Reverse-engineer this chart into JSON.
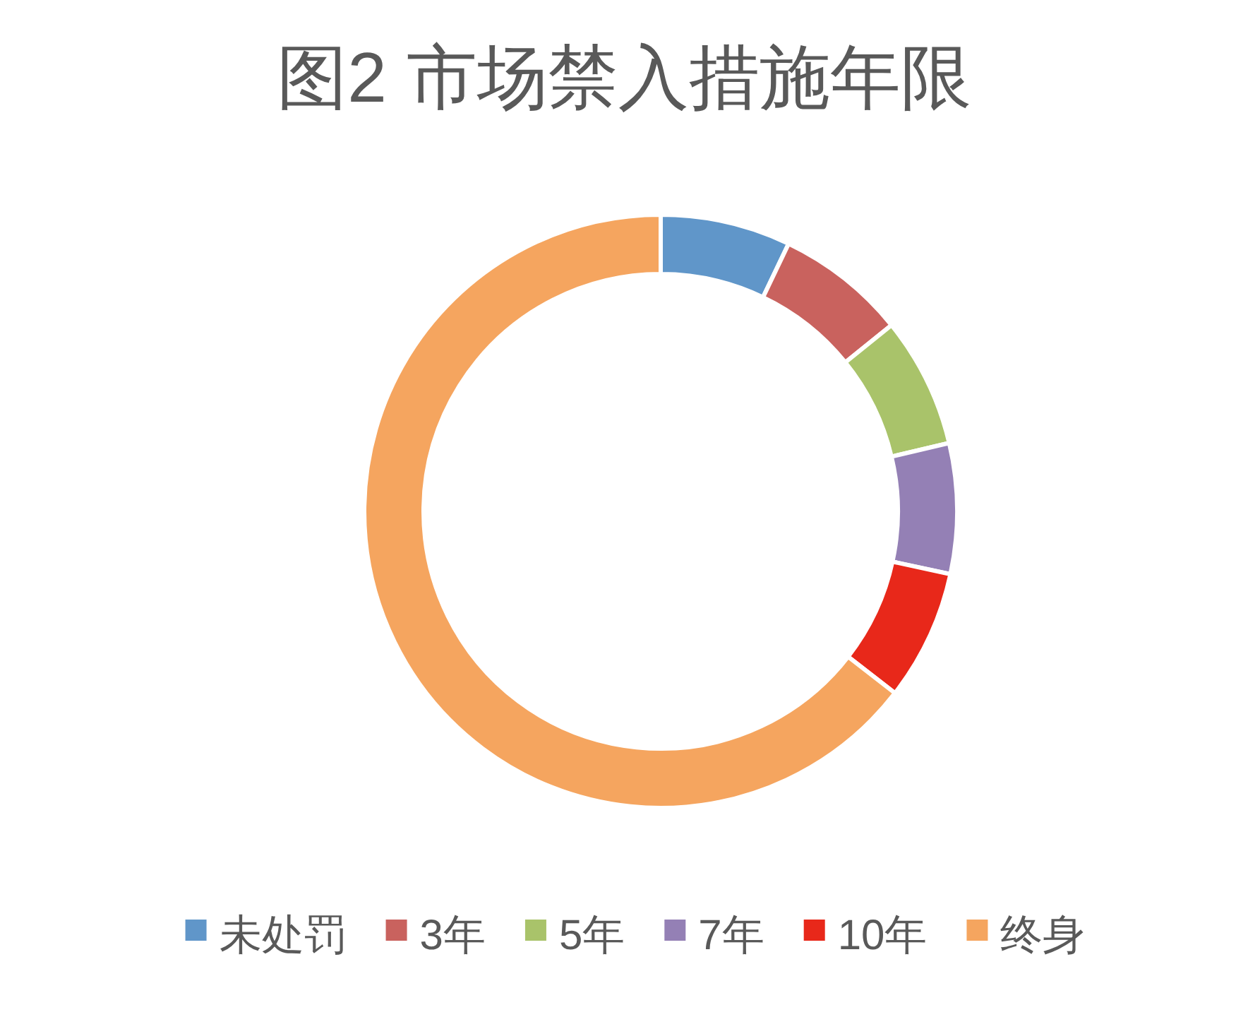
{
  "chart_data": {
    "type": "donut",
    "title": "图2 市场禁入措施年限",
    "categories": [
      "未处罚",
      "3年",
      "5年",
      "7年",
      "10年",
      "终身"
    ],
    "values": [
      7.1,
      7.1,
      7.1,
      7.1,
      7.1,
      64.5
    ],
    "colors": [
      "#6096c9",
      "#c9625e",
      "#a9c36a",
      "#9480b5",
      "#e8281a",
      "#f5a55f"
    ],
    "legend": "bottom"
  }
}
